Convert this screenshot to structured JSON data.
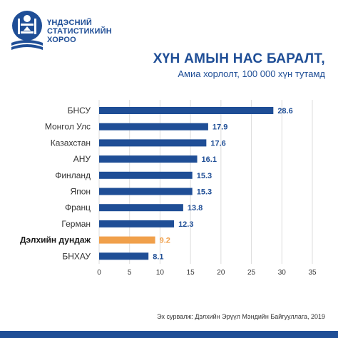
{
  "org": {
    "line1": "ҮНДЭСНИЙ",
    "line2": "СТАТИСТИКИЙН",
    "line3": "ХОРОО"
  },
  "chart_data": {
    "type": "bar",
    "orientation": "horizontal",
    "title": "ХҮН АМЫН НАС БАРАЛТ,",
    "subtitle": "Амиа хорлолт, 100 000  хүн тутамд",
    "categories": [
      "БНСУ",
      "Монгол Улс",
      "Казахстан",
      "АНУ",
      "Финланд",
      "Япон",
      "Франц",
      "Герман",
      "Дэлхийн дундаж",
      "БНХАУ"
    ],
    "values": [
      28.6,
      17.9,
      17.6,
      16.1,
      15.3,
      15.3,
      13.8,
      12.3,
      9.2,
      8.1
    ],
    "value_labels": [
      "28.6",
      "17.9",
      "17.6",
      "16.1",
      "15.3",
      "15.3",
      "13.8",
      "12.3",
      "9.2",
      "8.1"
    ],
    "highlight_index": 8,
    "xlim": [
      0,
      35
    ],
    "xticks": [
      0,
      5,
      10,
      15,
      20,
      25,
      30,
      35
    ],
    "grid": true,
    "legend": "none"
  },
  "colors": {
    "bar": "#1f4e96",
    "highlight": "#f0a04b",
    "grid": "#dddddd",
    "text": "#333333"
  },
  "source": "Эх сурвалж: Дэлхийн Эрүүл Мэндийн Байгууллага, 2019"
}
